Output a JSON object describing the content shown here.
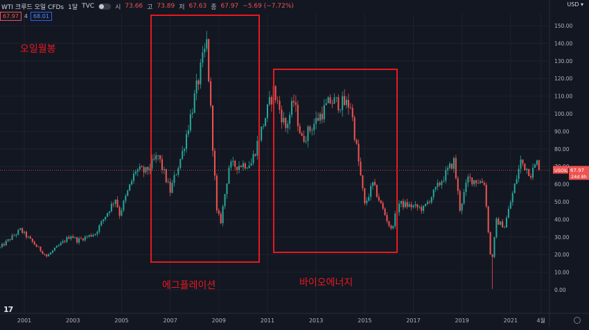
{
  "header": {
    "symbol": "WTI 크루드 오일 CFDs",
    "interval": "1달",
    "source": "TVC",
    "open_label": "시",
    "open": "73.66",
    "high_label": "고",
    "high": "73.89",
    "low_label": "저",
    "low": "67.63",
    "close_label": "종",
    "close": "67.97",
    "change": "−5.69 (−7.72%)"
  },
  "price_boxes": {
    "bid": "67.97",
    "spread": "4",
    "ask": "68.01"
  },
  "currency": "USD",
  "last_price_tag": {
    "symbol": "USOIL",
    "price": "67.97",
    "countdown": "24d 8h"
  },
  "colors": {
    "up": "#26a69a",
    "down": "#ef5350",
    "background": "#131722",
    "annotation": "#e8191f"
  },
  "annotations": {
    "label_top_left": "오일월봉",
    "box1_label": "에그플레이션",
    "box2_label": "바이오에너지"
  },
  "chart_data": {
    "type": "candlestick",
    "title": "",
    "xlabel": "",
    "ylabel": "",
    "ylim": [
      -8,
      156
    ],
    "x_range": [
      "2000-01",
      "2021-12"
    ],
    "grid": true,
    "y_ticks": [
      "150.00",
      "140.00",
      "130.00",
      "120.00",
      "110.00",
      "100.00",
      "90.00",
      "80.00",
      "70.00",
      "60.00",
      "50.00",
      "40.00",
      "30.00",
      "20.00",
      "10.00",
      "0.00"
    ],
    "x_ticks": [
      {
        "label": "2001",
        "t": 2001.0
      },
      {
        "label": "2003",
        "t": 2003.0
      },
      {
        "label": "2005",
        "t": 2005.0
      },
      {
        "label": "2007",
        "t": 2007.0
      },
      {
        "label": "2009",
        "t": 2009.0
      },
      {
        "label": "2011",
        "t": 2011.0
      },
      {
        "label": "2013",
        "t": 2013.0
      },
      {
        "label": "2015",
        "t": 2015.0
      },
      {
        "label": "2017",
        "t": 2017.0
      },
      {
        "label": "2019",
        "t": 2019.0
      },
      {
        "label": "2021",
        "t": 2021.0
      },
      {
        "label": "4월",
        "t": 2022.25
      }
    ],
    "price_anchors": [
      [
        "2000-01",
        24
      ],
      [
        "2000-11",
        34
      ],
      [
        "2001-12",
        19
      ],
      [
        "2002-12",
        31
      ],
      [
        "2003-03",
        28
      ],
      [
        "2003-12",
        32
      ],
      [
        "2004-10",
        52
      ],
      [
        "2004-12",
        43
      ],
      [
        "2005-08",
        68
      ],
      [
        "2006-01",
        67
      ],
      [
        "2006-07",
        76
      ],
      [
        "2007-01",
        56
      ],
      [
        "2007-07",
        78
      ],
      [
        "2008-07",
        140
      ],
      [
        "2008-12",
        44
      ],
      [
        "2009-02",
        39
      ],
      [
        "2009-06",
        70
      ],
      [
        "2010-05",
        72
      ],
      [
        "2011-04",
        113
      ],
      [
        "2011-10",
        92
      ],
      [
        "2012-02",
        107
      ],
      [
        "2012-06",
        85
      ],
      [
        "2013-08",
        107
      ],
      [
        "2014-06",
        105
      ],
      [
        "2015-01",
        48
      ],
      [
        "2015-05",
        60
      ],
      [
        "2016-02",
        34
      ],
      [
        "2016-06",
        49
      ],
      [
        "2017-06",
        46
      ],
      [
        "2018-09",
        73
      ],
      [
        "2018-12",
        46
      ],
      [
        "2019-04",
        63
      ],
      [
        "2019-12",
        61
      ],
      [
        "2020-03",
        20
      ],
      [
        "2020-04",
        19
      ],
      [
        "2020-06",
        39
      ],
      [
        "2020-10",
        36
      ],
      [
        "2021-06",
        73
      ],
      [
        "2021-11",
        66
      ],
      [
        "2022-03",
        74
      ]
    ],
    "last_candle": {
      "t": "2022-03",
      "open": 73.66,
      "high": 73.89,
      "low": 67.63,
      "close": 67.97
    },
    "extremes": {
      "max_high": 147,
      "max_high_t": "2008-07",
      "min_low": 0.5,
      "min_low_t": "2020-04"
    }
  }
}
